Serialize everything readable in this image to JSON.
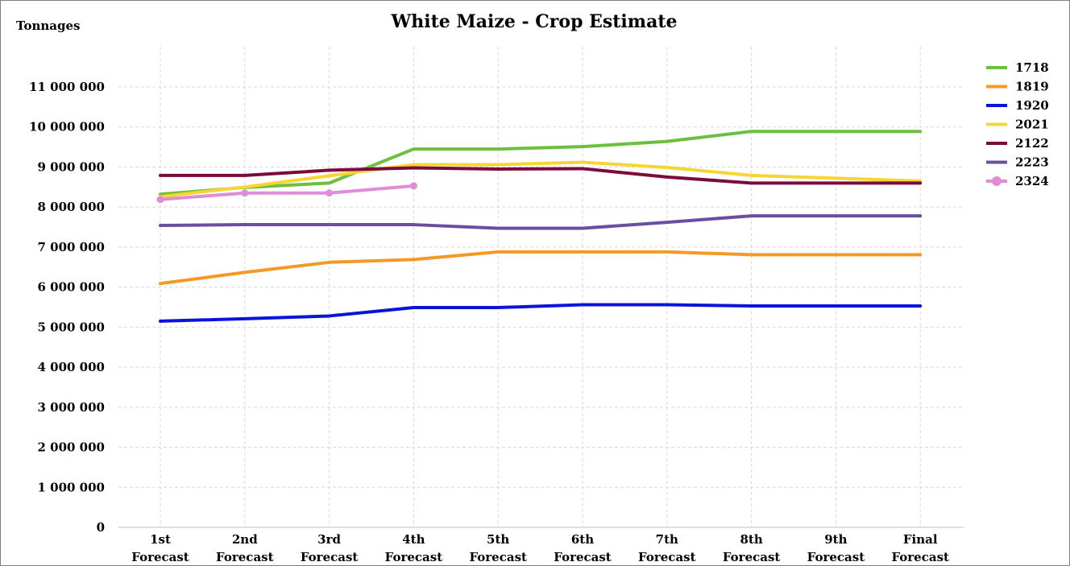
{
  "chart_data": {
    "type": "line",
    "title": "White Maize - Crop Estimate",
    "ylabel": "Tonnages",
    "xlabel": "",
    "ylim": [
      0,
      11000000
    ],
    "y_ticks": [
      {
        "value": 0,
        "label": "0"
      },
      {
        "value": 1000000,
        "label": "1 000 000"
      },
      {
        "value": 2000000,
        "label": "2 000 000"
      },
      {
        "value": 3000000,
        "label": "3 000 000"
      },
      {
        "value": 4000000,
        "label": "4 000 000"
      },
      {
        "value": 5000000,
        "label": "5 000 000"
      },
      {
        "value": 6000000,
        "label": "6 000 000"
      },
      {
        "value": 7000000,
        "label": "7 000 000"
      },
      {
        "value": 8000000,
        "label": "8 000 000"
      },
      {
        "value": 9000000,
        "label": "9 000 000"
      },
      {
        "value": 10000000,
        "label": "10 000 000"
      },
      {
        "value": 11000000,
        "label": "11 000 000"
      }
    ],
    "categories": [
      [
        "1st",
        "Forecast"
      ],
      [
        "2nd",
        "Forecast"
      ],
      [
        "3rd",
        "Forecast"
      ],
      [
        "4th",
        "Forecast"
      ],
      [
        "5th",
        "Forecast"
      ],
      [
        "6th",
        "Forecast"
      ],
      [
        "7th",
        "Forecast"
      ],
      [
        "8th",
        "Forecast"
      ],
      [
        "9th",
        "Forecast"
      ],
      [
        "Final",
        "Forecast"
      ]
    ],
    "grid": true,
    "legend_position": "right",
    "series": [
      {
        "name": "1718",
        "color": "#6cbf3f",
        "markers": false,
        "values": [
          8320000,
          8490000,
          8600000,
          9450000,
          9450000,
          9510000,
          9640000,
          9890000,
          9890000,
          9890000
        ]
      },
      {
        "name": "1819",
        "color": "#f39a26",
        "markers": false,
        "values": [
          6090000,
          6370000,
          6620000,
          6690000,
          6880000,
          6880000,
          6880000,
          6810000,
          6810000,
          6810000
        ]
      },
      {
        "name": "1920",
        "color": "#0a14d6",
        "markers": false,
        "values": [
          5150000,
          5210000,
          5280000,
          5490000,
          5490000,
          5560000,
          5560000,
          5530000,
          5530000,
          5530000
        ]
      },
      {
        "name": "2021",
        "color": "#f7d534",
        "markers": false,
        "values": [
          8260000,
          8500000,
          8780000,
          9060000,
          9060000,
          9120000,
          8990000,
          8790000,
          8720000,
          8650000
        ]
      },
      {
        "name": "2122",
        "color": "#7a0b3d",
        "markers": false,
        "values": [
          8790000,
          8790000,
          8920000,
          8980000,
          8950000,
          8960000,
          8750000,
          8600000,
          8600000,
          8600000
        ]
      },
      {
        "name": "2223",
        "color": "#6a4fa0",
        "markers": false,
        "values": [
          7540000,
          7560000,
          7560000,
          7560000,
          7470000,
          7470000,
          7620000,
          7780000,
          7780000,
          7780000
        ]
      },
      {
        "name": "2324",
        "color": "#df8cd9",
        "markers": true,
        "values": [
          8190000,
          8350000,
          8350000,
          8530000,
          null,
          null,
          null,
          null,
          null,
          null
        ]
      }
    ]
  }
}
